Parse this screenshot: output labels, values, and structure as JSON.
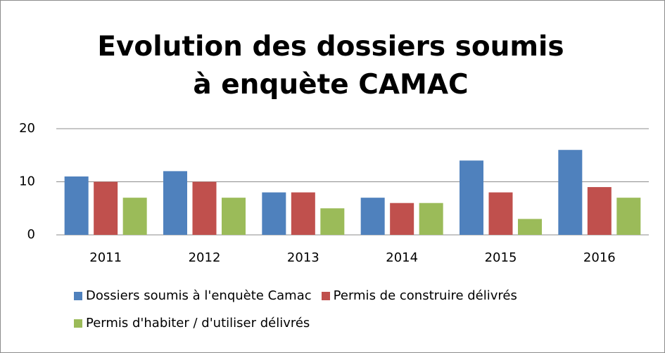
{
  "chart_data": {
    "type": "bar",
    "title": "Evolution des dossiers soumis à enquète CAMAC",
    "categories": [
      "2011",
      "2012",
      "2013",
      "2014",
      "2015",
      "2016"
    ],
    "series": [
      {
        "name": "Dossiers soumis à l'enquète Camac",
        "color": "#4f81bd",
        "values": [
          11,
          12,
          8,
          7,
          14,
          16
        ]
      },
      {
        "name": "Permis de construire délivrés",
        "color": "#c0504d",
        "values": [
          10,
          10,
          8,
          6,
          8,
          9
        ]
      },
      {
        "name": "Permis d'habiter / d'utiliser délivrés",
        "color": "#9bbb59",
        "values": [
          7,
          7,
          5,
          6,
          3,
          7
        ]
      }
    ],
    "ylim": [
      0,
      20
    ],
    "yticks": [
      0,
      10,
      20
    ],
    "grid": true,
    "legend": "bottom"
  }
}
